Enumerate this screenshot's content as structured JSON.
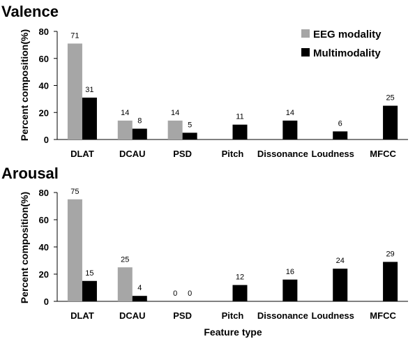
{
  "chart_data": [
    {
      "type": "bar",
      "title": "Valence",
      "ylabel": "Percent composition(%)",
      "xlabel": "",
      "ylim": [
        0,
        80
      ],
      "yticks": [
        0,
        20,
        40,
        60,
        80
      ],
      "categories": [
        "DLAT",
        "DCAU",
        "PSD",
        "Pitch",
        "Dissonance",
        "Loudness",
        "MFCC"
      ],
      "series": [
        {
          "name": "EEG modality",
          "color": "#a6a6a6",
          "values": [
            71,
            14,
            14,
            null,
            null,
            null,
            null
          ]
        },
        {
          "name": "Multimodality",
          "color": "#000000",
          "values": [
            31,
            8,
            5,
            11,
            14,
            6,
            25
          ]
        }
      ],
      "legend": "top-right",
      "grid": false
    },
    {
      "type": "bar",
      "title": "Arousal",
      "ylabel": "Percent composition(%)",
      "xlabel": "Feature type",
      "ylim": [
        0,
        80
      ],
      "yticks": [
        0,
        20,
        40,
        60,
        80
      ],
      "categories": [
        "DLAT",
        "DCAU",
        "PSD",
        "Pitch",
        "Dissonance",
        "Loudness",
        "MFCC"
      ],
      "series": [
        {
          "name": "EEG modality",
          "color": "#a6a6a6",
          "values": [
            75,
            25,
            0,
            null,
            null,
            null,
            null
          ]
        },
        {
          "name": "Multimodality",
          "color": "#000000",
          "values": [
            15,
            4,
            0,
            12,
            16,
            24,
            29
          ]
        }
      ],
      "legend": "none",
      "grid": false
    }
  ]
}
